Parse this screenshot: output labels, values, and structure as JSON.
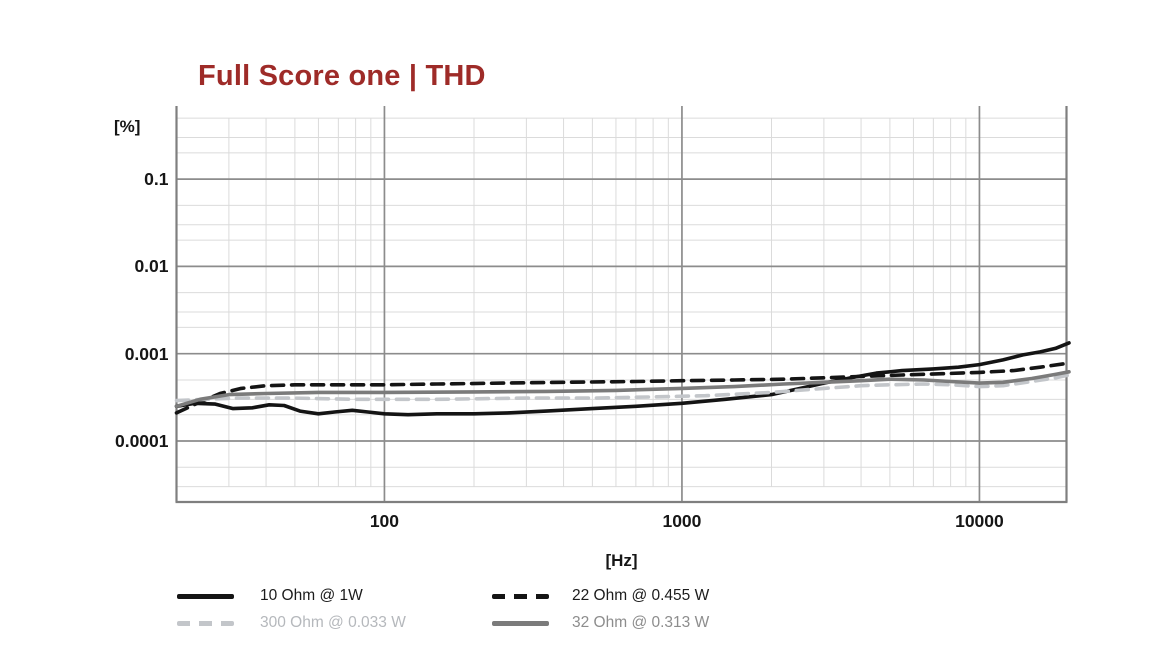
{
  "title": "Full Score one | THD",
  "colors": {
    "title": "#9E2B28",
    "black_series": "#141414",
    "gray_series": "#7B7B7B",
    "lightgray_series": "#C3C6CA",
    "grid_major": "#8C8C8C",
    "grid_minor": "#DBDBDB",
    "axis_frame": "#7F7F7F",
    "tick_text": "#161616"
  },
  "y_axis": {
    "unit_label": "[%]",
    "tick_labels": [
      "0.1",
      "0.01",
      "0.001",
      "0.0001"
    ],
    "tick_values": [
      0.1,
      0.01,
      0.001,
      0.0001
    ]
  },
  "x_axis": {
    "unit_label": "[Hz]",
    "tick_labels": [
      "100",
      "1000",
      "10000"
    ],
    "tick_values": [
      100,
      1000,
      10000
    ]
  },
  "legend": {
    "items": [
      {
        "label": "10 Ohm @ 1W",
        "swatch_color": "#141414",
        "text_color": "#1C1C1C",
        "dashed": false,
        "col": 0,
        "row": 0
      },
      {
        "label": "22 Ohm @ 0.455 W",
        "swatch_color": "#141414",
        "text_color": "#1C1C1C",
        "dashed": true,
        "col": 1,
        "row": 0
      },
      {
        "label": "300 Ohm @ 0.033 W",
        "swatch_color": "#C3C6CA",
        "text_color": "#B5B8BC",
        "dashed": true,
        "col": 0,
        "row": 1
      },
      {
        "label": "32 Ohm @ 0.313 W",
        "swatch_color": "#7B7B7B",
        "text_color": "#8D8D8D",
        "dashed": false,
        "col": 1,
        "row": 1
      }
    ]
  },
  "chart_data": {
    "type": "line",
    "title": "Full Score one | THD",
    "xlabel": "[Hz]",
    "ylabel": "[%]",
    "x_scale": "log",
    "y_scale": "log",
    "x_range": [
      20,
      20000
    ],
    "y_range": [
      2e-05,
      0.6
    ],
    "x_major_gridlines": [
      100,
      1000,
      10000
    ],
    "x_minor_gridlines": [
      30,
      40,
      50,
      60,
      70,
      80,
      90,
      200,
      300,
      400,
      500,
      600,
      700,
      800,
      900,
      2000,
      3000,
      4000,
      5000,
      6000,
      7000,
      8000,
      9000
    ],
    "y_major_gridlines": [
      0.0001,
      0.001,
      0.01,
      0.1
    ],
    "y_minor_gridlines": [
      3e-05,
      5e-05,
      0.0002,
      0.0003,
      0.0005,
      0.002,
      0.003,
      0.005,
      0.02,
      0.03,
      0.05,
      0.2,
      0.3,
      0.5
    ],
    "grid": true,
    "legend_position": "bottom",
    "series": [
      {
        "name": "10 Ohm @ 1W",
        "color": "#141414",
        "style": "solid",
        "points": [
          [
            20,
            0.00025
          ],
          [
            23,
            0.00027
          ],
          [
            27,
            0.000265
          ],
          [
            31,
            0.000235
          ],
          [
            36,
            0.00024
          ],
          [
            41,
            0.00026
          ],
          [
            46,
            0.000255
          ],
          [
            52,
            0.00022
          ],
          [
            60,
            0.000205
          ],
          [
            68,
            0.000215
          ],
          [
            78,
            0.000225
          ],
          [
            88,
            0.000215
          ],
          [
            100,
            0.000205
          ],
          [
            120,
            0.0002
          ],
          [
            150,
            0.000205
          ],
          [
            200,
            0.000205
          ],
          [
            260,
            0.00021
          ],
          [
            350,
            0.00022
          ],
          [
            500,
            0.000235
          ],
          [
            700,
            0.00025
          ],
          [
            1000,
            0.00027
          ],
          [
            1400,
            0.0003
          ],
          [
            2000,
            0.00034
          ],
          [
            2500,
            0.0004
          ],
          [
            3000,
            0.00046
          ],
          [
            3800,
            0.00054
          ],
          [
            4500,
            0.0006
          ],
          [
            5500,
            0.00064
          ],
          [
            7000,
            0.00067
          ],
          [
            8500,
            0.0007
          ],
          [
            10000,
            0.00075
          ],
          [
            12000,
            0.00085
          ],
          [
            14000,
            0.00097
          ],
          [
            16000,
            0.00105
          ],
          [
            18000,
            0.00115
          ],
          [
            20000,
            0.00133
          ]
        ]
      },
      {
        "name": "22 Ohm @ 0.455 W",
        "color": "#141414",
        "style": "dashed",
        "points": [
          [
            20,
            0.00021
          ],
          [
            24,
            0.00028
          ],
          [
            28,
            0.00035
          ],
          [
            33,
            0.0004
          ],
          [
            40,
            0.00043
          ],
          [
            50,
            0.00044
          ],
          [
            70,
            0.00044
          ],
          [
            100,
            0.00044
          ],
          [
            150,
            0.00045
          ],
          [
            250,
            0.00046
          ],
          [
            400,
            0.00047
          ],
          [
            700,
            0.00048
          ],
          [
            1000,
            0.00049
          ],
          [
            1500,
            0.0005
          ],
          [
            2200,
            0.00051
          ],
          [
            3000,
            0.00053
          ],
          [
            4000,
            0.00055
          ],
          [
            5500,
            0.00057
          ],
          [
            7500,
            0.00059
          ],
          [
            10000,
            0.00061
          ],
          [
            13000,
            0.00064
          ],
          [
            16000,
            0.0007
          ],
          [
            20000,
            0.00078
          ]
        ]
      },
      {
        "name": "300 Ohm @ 0.033 W",
        "color": "#C3C6CA",
        "style": "dashed",
        "points": [
          [
            20,
            0.00029
          ],
          [
            25,
            0.0003
          ],
          [
            32,
            0.00031
          ],
          [
            50,
            0.00031
          ],
          [
            80,
            0.0003
          ],
          [
            150,
            0.0003
          ],
          [
            300,
            0.00031
          ],
          [
            500,
            0.00031
          ],
          [
            800,
            0.00032
          ],
          [
            1200,
            0.00033
          ],
          [
            2000,
            0.00036
          ],
          [
            3000,
            0.0004
          ],
          [
            4000,
            0.00043
          ],
          [
            5000,
            0.00044
          ],
          [
            6500,
            0.00045
          ],
          [
            8000,
            0.00044
          ],
          [
            10000,
            0.00042
          ],
          [
            12000,
            0.00043
          ],
          [
            15000,
            0.00048
          ],
          [
            18000,
            0.00053
          ],
          [
            20000,
            0.00057
          ]
        ]
      },
      {
        "name": "32 Ohm @ 0.313 W",
        "color": "#7B7B7B",
        "style": "solid",
        "points": [
          [
            20,
            0.00025
          ],
          [
            24,
            0.0003
          ],
          [
            30,
            0.00034
          ],
          [
            40,
            0.00035
          ],
          [
            60,
            0.00036
          ],
          [
            100,
            0.00036
          ],
          [
            200,
            0.000365
          ],
          [
            350,
            0.00037
          ],
          [
            600,
            0.00038
          ],
          [
            1000,
            0.0004
          ],
          [
            1500,
            0.00042
          ],
          [
            2200,
            0.00045
          ],
          [
            3000,
            0.00047
          ],
          [
            4000,
            0.00049
          ],
          [
            5000,
            0.00051
          ],
          [
            6500,
            0.0005
          ],
          [
            8000,
            0.00048
          ],
          [
            10000,
            0.00046
          ],
          [
            12000,
            0.00047
          ],
          [
            15000,
            0.00052
          ],
          [
            18000,
            0.00058
          ],
          [
            20000,
            0.00062
          ]
        ]
      }
    ]
  }
}
